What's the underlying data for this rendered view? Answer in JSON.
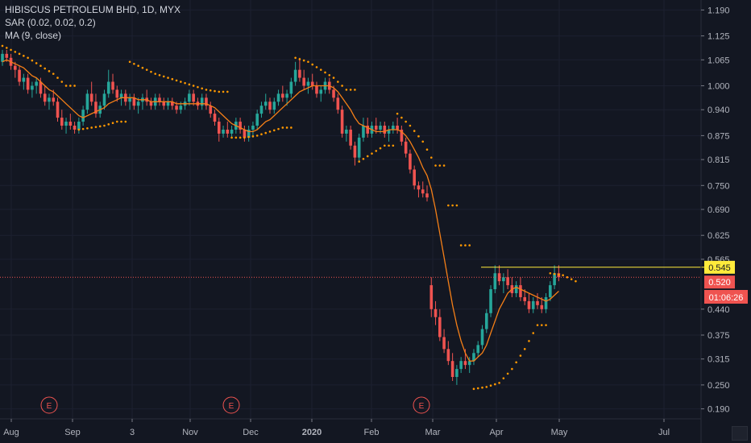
{
  "legend": {
    "symbol": "HIBISCUS PETROLEUM BHD, 1D, MYX",
    "sar": "SAR (0.02, 0.02, 0.2)",
    "ma": "MA (9, close)"
  },
  "price_badges": {
    "alert_price": "0.545",
    "last_price": "0.520",
    "countdown": "01:06:26"
  },
  "colors": {
    "background": "#131722",
    "up": "#26a69a",
    "down": "#ef5350",
    "ma": "#f57f17",
    "sar": "#ff9800",
    "alert_line": "#ffeb3b",
    "last_price_line": "#ef5350",
    "earnings": "#ef5350"
  },
  "earnings_marker": "E",
  "chart_data": {
    "type": "candlestick",
    "y_axis": {
      "ticks": [
        "1.190",
        "1.125",
        "1.065",
        "1.000",
        "0.940",
        "0.875",
        "0.815",
        "0.750",
        "0.690",
        "0.625",
        "0.565",
        "0.440",
        "0.375",
        "0.315",
        "0.250",
        "0.190"
      ],
      "range": [
        0.165,
        1.215
      ]
    },
    "x_axis": {
      "ticks": [
        {
          "label": "Aug",
          "bold": false
        },
        {
          "label": "Sep",
          "bold": false
        },
        {
          "label": "3",
          "bold": false
        },
        {
          "label": "Nov",
          "bold": false
        },
        {
          "label": "Dec",
          "bold": false
        },
        {
          "label": "2020",
          "bold": true
        },
        {
          "label": "Feb",
          "bold": false
        },
        {
          "label": "Mar",
          "bold": false
        },
        {
          "label": "Apr",
          "bold": false
        },
        {
          "label": "May",
          "bold": false
        },
        {
          "label": "Jul",
          "bold": false
        }
      ]
    },
    "alert_level": 0.545,
    "last_price": 0.52,
    "earnings_count": 3,
    "candles": [
      [
        1.06,
        1.09,
        1.05,
        1.08
      ],
      [
        1.08,
        1.09,
        1.06,
        1.07
      ],
      [
        1.07,
        1.08,
        1.04,
        1.05
      ],
      [
        1.05,
        1.06,
        1.02,
        1.04
      ],
      [
        1.04,
        1.05,
        1.0,
        1.01
      ],
      [
        1.01,
        1.03,
        0.99,
        1.02
      ],
      [
        1.02,
        1.03,
        0.98,
        0.99
      ],
      [
        0.99,
        1.01,
        0.97,
        1.0
      ],
      [
        1.0,
        1.02,
        0.98,
        1.01
      ],
      [
        1.01,
        1.02,
        0.97,
        0.98
      ],
      [
        0.98,
        1.0,
        0.95,
        0.96
      ],
      [
        0.96,
        0.98,
        0.94,
        0.97
      ],
      [
        0.97,
        0.99,
        0.95,
        0.96
      ],
      [
        0.96,
        0.97,
        0.91,
        0.92
      ],
      [
        0.92,
        0.94,
        0.89,
        0.9
      ],
      [
        0.9,
        0.92,
        0.88,
        0.91
      ],
      [
        0.91,
        0.93,
        0.89,
        0.9
      ],
      [
        0.9,
        0.91,
        0.88,
        0.89
      ],
      [
        0.89,
        0.92,
        0.88,
        0.91
      ],
      [
        0.91,
        0.95,
        0.9,
        0.94
      ],
      [
        0.94,
        0.99,
        0.93,
        0.98
      ],
      [
        0.98,
        1.01,
        0.95,
        0.96
      ],
      [
        0.96,
        0.98,
        0.92,
        0.93
      ],
      [
        0.93,
        0.96,
        0.92,
        0.95
      ],
      [
        0.95,
        0.99,
        0.94,
        0.98
      ],
      [
        0.98,
        1.04,
        0.97,
        1.01
      ],
      [
        1.01,
        1.03,
        0.98,
        0.99
      ],
      [
        0.99,
        1.0,
        0.96,
        0.97
      ],
      [
        0.97,
        0.99,
        0.95,
        0.98
      ],
      [
        0.98,
        0.99,
        0.95,
        0.96
      ],
      [
        0.96,
        0.98,
        0.94,
        0.97
      ],
      [
        0.97,
        0.98,
        0.94,
        0.95
      ],
      [
        0.95,
        0.97,
        0.93,
        0.96
      ],
      [
        0.96,
        0.98,
        0.94,
        0.97
      ],
      [
        0.97,
        0.99,
        0.95,
        0.96
      ],
      [
        0.96,
        0.97,
        0.94,
        0.95
      ],
      [
        0.95,
        0.98,
        0.94,
        0.97
      ],
      [
        0.97,
        0.98,
        0.95,
        0.96
      ],
      [
        0.96,
        0.97,
        0.94,
        0.95
      ],
      [
        0.95,
        0.97,
        0.94,
        0.96
      ],
      [
        0.96,
        0.97,
        0.94,
        0.95
      ],
      [
        0.95,
        0.96,
        0.93,
        0.94
      ],
      [
        0.94,
        0.96,
        0.93,
        0.95
      ],
      [
        0.95,
        0.97,
        0.94,
        0.96
      ],
      [
        0.96,
        0.99,
        0.95,
        0.98
      ],
      [
        0.98,
        0.99,
        0.95,
        0.96
      ],
      [
        0.96,
        0.97,
        0.94,
        0.95
      ],
      [
        0.95,
        0.98,
        0.94,
        0.97
      ],
      [
        0.97,
        0.98,
        0.94,
        0.95
      ],
      [
        0.95,
        0.96,
        0.92,
        0.93
      ],
      [
        0.93,
        0.94,
        0.9,
        0.91
      ],
      [
        0.91,
        0.92,
        0.86,
        0.88
      ],
      [
        0.88,
        0.9,
        0.87,
        0.89
      ],
      [
        0.89,
        0.91,
        0.87,
        0.88
      ],
      [
        0.88,
        0.9,
        0.87,
        0.89
      ],
      [
        0.89,
        0.92,
        0.88,
        0.91
      ],
      [
        0.91,
        0.92,
        0.88,
        0.89
      ],
      [
        0.89,
        0.9,
        0.86,
        0.87
      ],
      [
        0.87,
        0.9,
        0.86,
        0.89
      ],
      [
        0.89,
        0.91,
        0.87,
        0.9
      ],
      [
        0.9,
        0.94,
        0.89,
        0.93
      ],
      [
        0.93,
        0.96,
        0.92,
        0.95
      ],
      [
        0.95,
        0.98,
        0.94,
        0.96
      ],
      [
        0.96,
        0.97,
        0.93,
        0.94
      ],
      [
        0.94,
        0.97,
        0.93,
        0.96
      ],
      [
        0.96,
        0.99,
        0.95,
        0.98
      ],
      [
        0.98,
        1.0,
        0.96,
        0.97
      ],
      [
        0.97,
        0.99,
        0.95,
        0.98
      ],
      [
        0.98,
        1.02,
        0.97,
        1.01
      ],
      [
        1.01,
        1.06,
        1.0,
        1.04
      ],
      [
        1.04,
        1.07,
        1.01,
        1.02
      ],
      [
        1.02,
        1.04,
        0.99,
        1.0
      ],
      [
        1.0,
        1.02,
        0.98,
        1.01
      ],
      [
        1.01,
        1.03,
        0.99,
        1.0
      ],
      [
        1.0,
        1.01,
        0.97,
        0.98
      ],
      [
        0.98,
        1.0,
        0.96,
        0.99
      ],
      [
        0.99,
        1.02,
        0.98,
        1.01
      ],
      [
        1.01,
        1.02,
        0.98,
        0.99
      ],
      [
        0.99,
        1.0,
        0.96,
        0.97
      ],
      [
        0.97,
        0.98,
        0.93,
        0.94
      ],
      [
        0.94,
        0.95,
        0.87,
        0.88
      ],
      [
        0.88,
        0.9,
        0.86,
        0.89
      ],
      [
        0.89,
        0.9,
        0.84,
        0.85
      ],
      [
        0.85,
        0.86,
        0.8,
        0.82
      ],
      [
        0.82,
        0.88,
        0.81,
        0.87
      ],
      [
        0.87,
        0.92,
        0.86,
        0.9
      ],
      [
        0.9,
        0.92,
        0.87,
        0.88
      ],
      [
        0.88,
        0.91,
        0.87,
        0.9
      ],
      [
        0.9,
        0.92,
        0.88,
        0.89
      ],
      [
        0.89,
        0.91,
        0.88,
        0.9
      ],
      [
        0.9,
        0.91,
        0.87,
        0.88
      ],
      [
        0.88,
        0.9,
        0.86,
        0.89
      ],
      [
        0.89,
        0.91,
        0.88,
        0.9
      ],
      [
        0.9,
        0.92,
        0.88,
        0.89
      ],
      [
        0.89,
        0.9,
        0.85,
        0.86
      ],
      [
        0.86,
        0.87,
        0.82,
        0.83
      ],
      [
        0.83,
        0.84,
        0.78,
        0.79
      ],
      [
        0.79,
        0.8,
        0.74,
        0.75
      ],
      [
        0.75,
        0.76,
        0.72,
        0.74
      ],
      [
        0.74,
        0.76,
        0.72,
        0.73
      ],
      [
        0.73,
        0.75,
        0.71,
        0.72
      ],
      [
        0.5,
        0.52,
        0.42,
        0.44
      ],
      [
        0.44,
        0.46,
        0.4,
        0.42
      ],
      [
        0.42,
        0.44,
        0.36,
        0.37
      ],
      [
        0.37,
        0.39,
        0.33,
        0.34
      ],
      [
        0.34,
        0.36,
        0.3,
        0.31
      ],
      [
        0.31,
        0.33,
        0.26,
        0.27
      ],
      [
        0.27,
        0.3,
        0.25,
        0.29
      ],
      [
        0.29,
        0.32,
        0.28,
        0.31
      ],
      [
        0.31,
        0.34,
        0.29,
        0.3
      ],
      [
        0.3,
        0.32,
        0.28,
        0.31
      ],
      [
        0.31,
        0.34,
        0.3,
        0.33
      ],
      [
        0.33,
        0.36,
        0.32,
        0.35
      ],
      [
        0.35,
        0.4,
        0.34,
        0.39
      ],
      [
        0.39,
        0.44,
        0.38,
        0.43
      ],
      [
        0.43,
        0.5,
        0.42,
        0.49
      ],
      [
        0.49,
        0.55,
        0.48,
        0.53
      ],
      [
        0.53,
        0.55,
        0.5,
        0.51
      ],
      [
        0.51,
        0.53,
        0.48,
        0.52
      ],
      [
        0.52,
        0.54,
        0.49,
        0.5
      ],
      [
        0.5,
        0.52,
        0.47,
        0.48
      ],
      [
        0.48,
        0.51,
        0.47,
        0.5
      ],
      [
        0.5,
        0.52,
        0.46,
        0.47
      ],
      [
        0.47,
        0.49,
        0.45,
        0.46
      ],
      [
        0.46,
        0.48,
        0.43,
        0.44
      ],
      [
        0.44,
        0.47,
        0.43,
        0.46
      ],
      [
        0.46,
        0.48,
        0.44,
        0.45
      ],
      [
        0.45,
        0.47,
        0.43,
        0.44
      ],
      [
        0.44,
        0.48,
        0.43,
        0.47
      ],
      [
        0.47,
        0.51,
        0.46,
        0.5
      ],
      [
        0.5,
        0.55,
        0.49,
        0.53
      ],
      [
        0.53,
        0.55,
        0.51,
        0.52
      ]
    ],
    "ma": [
      1.06,
      1.065,
      1.06,
      1.055,
      1.05,
      1.045,
      1.035,
      1.025,
      1.02,
      1.01,
      1.0,
      0.99,
      0.985,
      0.975,
      0.965,
      0.955,
      0.945,
      0.935,
      0.925,
      0.92,
      0.925,
      0.93,
      0.935,
      0.94,
      0.945,
      0.955,
      0.96,
      0.965,
      0.97,
      0.97,
      0.97,
      0.97,
      0.965,
      0.965,
      0.965,
      0.96,
      0.96,
      0.96,
      0.96,
      0.96,
      0.96,
      0.955,
      0.955,
      0.955,
      0.955,
      0.955,
      0.955,
      0.955,
      0.955,
      0.95,
      0.945,
      0.935,
      0.925,
      0.915,
      0.905,
      0.9,
      0.895,
      0.89,
      0.885,
      0.885,
      0.89,
      0.9,
      0.91,
      0.915,
      0.925,
      0.935,
      0.945,
      0.955,
      0.965,
      0.975,
      0.985,
      0.99,
      0.995,
      1.0,
      1.0,
      1.0,
      1.0,
      1.0,
      0.995,
      0.985,
      0.97,
      0.955,
      0.94,
      0.92,
      0.905,
      0.9,
      0.895,
      0.89,
      0.885,
      0.885,
      0.885,
      0.89,
      0.89,
      0.89,
      0.885,
      0.875,
      0.86,
      0.84,
      0.82,
      0.795,
      0.775,
      0.74,
      0.69,
      0.63,
      0.57,
      0.51,
      0.45,
      0.4,
      0.36,
      0.33,
      0.31,
      0.31,
      0.32,
      0.33,
      0.35,
      0.38,
      0.41,
      0.44,
      0.46,
      0.48,
      0.49,
      0.495,
      0.49,
      0.485,
      0.48,
      0.475,
      0.47,
      0.465,
      0.46,
      0.465,
      0.475,
      0.485
    ],
    "sar": [
      [
        0,
        1.1
      ],
      [
        3,
        1.085
      ],
      [
        6,
        1.07
      ],
      [
        9,
        1.05
      ],
      [
        12,
        1.03
      ],
      [
        15,
        1.0
      ],
      [
        18,
        0.89
      ],
      [
        21,
        0.895
      ],
      [
        24,
        0.9
      ],
      [
        27,
        0.91
      ],
      [
        30,
        1.06
      ],
      [
        33,
        1.045
      ],
      [
        36,
        1.03
      ],
      [
        39,
        1.02
      ],
      [
        42,
        1.01
      ],
      [
        45,
        1.0
      ],
      [
        48,
        0.99
      ],
      [
        51,
        0.985
      ],
      [
        54,
        0.87
      ],
      [
        57,
        0.87
      ],
      [
        60,
        0.875
      ],
      [
        63,
        0.885
      ],
      [
        66,
        0.895
      ],
      [
        69,
        1.07
      ],
      [
        72,
        1.06
      ],
      [
        75,
        1.04
      ],
      [
        78,
        1.02
      ],
      [
        81,
        0.99
      ],
      [
        84,
        0.81
      ],
      [
        87,
        0.83
      ],
      [
        90,
        0.85
      ],
      [
        93,
        0.93
      ],
      [
        96,
        0.9
      ],
      [
        99,
        0.86
      ],
      [
        102,
        0.8
      ],
      [
        105,
        0.7
      ],
      [
        108,
        0.6
      ],
      [
        111,
        0.24
      ],
      [
        114,
        0.245
      ],
      [
        117,
        0.255
      ],
      [
        120,
        0.29
      ],
      [
        123,
        0.34
      ],
      [
        126,
        0.4
      ],
      [
        129,
        0.53
      ],
      [
        132,
        0.525
      ],
      [
        135,
        0.51
      ],
      [
        136,
        0.4
      ]
    ],
    "earnings_index": [
      15,
      50,
      94
    ]
  }
}
